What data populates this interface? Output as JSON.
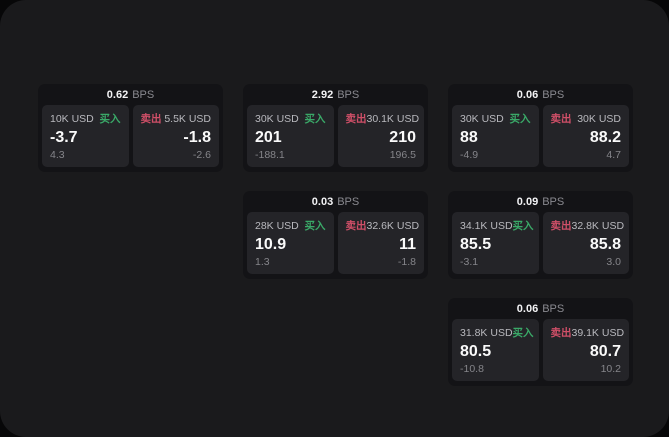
{
  "labels": {
    "bps_suffix": "BPS",
    "buy": "买入",
    "sell": "卖出"
  },
  "colors": {
    "buy": "#3aa968",
    "sell": "#d04f68",
    "window_bg": "#1a1a1c",
    "card_bg": "#131316",
    "panel_bg": "#242428"
  },
  "cards": [
    {
      "bps": "0.62",
      "buy": {
        "amount": "10K USD",
        "price": "-3.7",
        "delta": "4.3"
      },
      "sell": {
        "amount": "5.5K USD",
        "price": "-1.8",
        "delta": "-2.6"
      }
    },
    {
      "bps": "2.92",
      "buy": {
        "amount": "30K USD",
        "price": "201",
        "delta": "-188.1"
      },
      "sell": {
        "amount": "30.1K USD",
        "price": "210",
        "delta": "196.5"
      }
    },
    {
      "bps": "0.06",
      "buy": {
        "amount": "30K USD",
        "price": "88",
        "delta": "-4.9"
      },
      "sell": {
        "amount": "30K USD",
        "price": "88.2",
        "delta": "4.7"
      }
    },
    {
      "bps": "0.03",
      "buy": {
        "amount": "28K USD",
        "price": "10.9",
        "delta": "1.3"
      },
      "sell": {
        "amount": "32.6K USD",
        "price": "11",
        "delta": "-1.8"
      }
    },
    {
      "bps": "0.09",
      "buy": {
        "amount": "34.1K USD",
        "price": "85.5",
        "delta": "-3.1"
      },
      "sell": {
        "amount": "32.8K USD",
        "price": "85.8",
        "delta": "3.0"
      }
    },
    {
      "bps": "0.06",
      "buy": {
        "amount": "31.8K USD",
        "price": "80.5",
        "delta": "-10.8"
      },
      "sell": {
        "amount": "39.1K USD",
        "price": "80.7",
        "delta": "10.2"
      }
    }
  ]
}
